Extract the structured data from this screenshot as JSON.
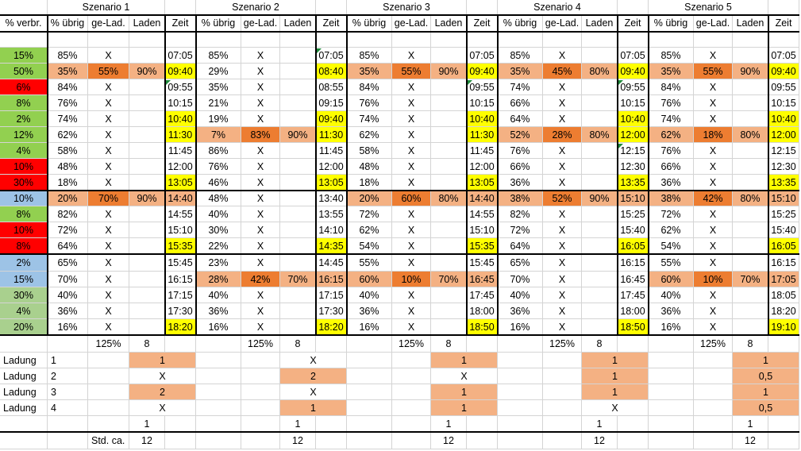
{
  "colors": {
    "light_orange": "#f4b183",
    "dark_orange": "#ed7d31",
    "yellow": "#ffff00",
    "green": "#92d050",
    "red": "#ff0000",
    "blue": "#9dc3e6",
    "light_green": "#a9d08e"
  },
  "scenario_titles": [
    "Szenario 1",
    "Szenario 2",
    "Szenario 3",
    "Szenario 4",
    "Szenario 5"
  ],
  "headers": {
    "verbr": "% verbr.",
    "uebrig": "% übrig",
    "gelad": "ge-Lad.",
    "laden": "Laden",
    "zeit": "Zeit"
  },
  "verbr": [
    "15%",
    "50%",
    "6%",
    "8%",
    "2%",
    "12%",
    "4%",
    "10%",
    "30%",
    "10%",
    "8%",
    "10%",
    "8%",
    "2%",
    "15%",
    "30%",
    "4%",
    "20%"
  ],
  "verbr_colors": [
    "g",
    "g",
    "r",
    "g",
    "g",
    "g",
    "g",
    "r",
    "r",
    "b",
    "g",
    "r",
    "r",
    "b",
    "b",
    "lg",
    "lg",
    "lg"
  ],
  "scenarios": [
    {
      "rows": [
        [
          "85%",
          "X",
          "",
          "07:05"
        ],
        [
          "35%",
          "55%",
          "90%",
          "09:40"
        ],
        [
          "84%",
          "X",
          "",
          "09:55"
        ],
        [
          "76%",
          "X",
          "",
          "10:15"
        ],
        [
          "74%",
          "X",
          "",
          "10:40"
        ],
        [
          "62%",
          "X",
          "",
          "11:30"
        ],
        [
          "58%",
          "X",
          "",
          "11:45"
        ],
        [
          "48%",
          "X",
          "",
          "12:00"
        ],
        [
          "18%",
          "X",
          "",
          "13:05"
        ],
        [
          "20%",
          "70%",
          "90%",
          "14:40"
        ],
        [
          "82%",
          "X",
          "",
          "14:55"
        ],
        [
          "72%",
          "X",
          "",
          "15:10"
        ],
        [
          "64%",
          "X",
          "",
          "15:35"
        ],
        [
          "65%",
          "X",
          "",
          "15:45"
        ],
        [
          "70%",
          "X",
          "",
          "16:15"
        ],
        [
          "40%",
          "X",
          "",
          "17:15"
        ],
        [
          "36%",
          "X",
          "",
          "17:30"
        ],
        [
          "16%",
          "X",
          "",
          "18:20"
        ]
      ],
      "charge_rows": [
        1,
        9
      ],
      "yellow_rows": [
        1,
        4,
        5,
        8,
        12,
        17
      ],
      "tri_rows": [
        2
      ],
      "pct": "125%",
      "count": "8",
      "ladung": [
        "1",
        "X",
        "2",
        "X"
      ],
      "ladung_hl": [
        true,
        false,
        true,
        false
      ],
      "one": "1",
      "std": "12"
    },
    {
      "rows": [
        [
          "85%",
          "X",
          "",
          "07:05"
        ],
        [
          "29%",
          "X",
          "",
          "08:40"
        ],
        [
          "35%",
          "X",
          "",
          "08:55"
        ],
        [
          "21%",
          "X",
          "",
          "09:15"
        ],
        [
          "19%",
          "X",
          "",
          "09:40"
        ],
        [
          "7%",
          "83%",
          "90%",
          "11:30"
        ],
        [
          "86%",
          "X",
          "",
          "11:45"
        ],
        [
          "76%",
          "X",
          "",
          "12:00"
        ],
        [
          "46%",
          "X",
          "",
          "13:05"
        ],
        [
          "48%",
          "X",
          "",
          "13:40"
        ],
        [
          "40%",
          "X",
          "",
          "13:55"
        ],
        [
          "30%",
          "X",
          "",
          "14:10"
        ],
        [
          "22%",
          "X",
          "",
          "14:35"
        ],
        [
          "23%",
          "X",
          "",
          "14:45"
        ],
        [
          "28%",
          "42%",
          "70%",
          "16:15"
        ],
        [
          "40%",
          "X",
          "",
          "17:15"
        ],
        [
          "36%",
          "X",
          "",
          "17:30"
        ],
        [
          "16%",
          "X",
          "",
          "18:20"
        ]
      ],
      "charge_rows": [
        5,
        14
      ],
      "yellow_rows": [
        1,
        4,
        5,
        8,
        12,
        17
      ],
      "tri_rows": [
        0
      ],
      "pct": "125%",
      "count": "8",
      "ladung": [
        "X",
        "2",
        "X",
        "1"
      ],
      "ladung_hl": [
        false,
        true,
        false,
        true
      ],
      "one": "1",
      "std": "12"
    },
    {
      "rows": [
        [
          "85%",
          "X",
          "",
          "07:05"
        ],
        [
          "35%",
          "55%",
          "90%",
          "09:40"
        ],
        [
          "84%",
          "X",
          "",
          "09:55"
        ],
        [
          "76%",
          "X",
          "",
          "10:15"
        ],
        [
          "74%",
          "X",
          "",
          "10:40"
        ],
        [
          "62%",
          "X",
          "",
          "11:30"
        ],
        [
          "58%",
          "X",
          "",
          "11:45"
        ],
        [
          "48%",
          "X",
          "",
          "12:00"
        ],
        [
          "18%",
          "X",
          "",
          "13:05"
        ],
        [
          "20%",
          "60%",
          "80%",
          "14:40"
        ],
        [
          "72%",
          "X",
          "",
          "14:55"
        ],
        [
          "62%",
          "X",
          "",
          "15:10"
        ],
        [
          "54%",
          "X",
          "",
          "15:35"
        ],
        [
          "55%",
          "X",
          "",
          "15:45"
        ],
        [
          "60%",
          "10%",
          "70%",
          "16:45"
        ],
        [
          "40%",
          "X",
          "",
          "17:45"
        ],
        [
          "36%",
          "X",
          "",
          "18:00"
        ],
        [
          "16%",
          "X",
          "",
          "18:50"
        ]
      ],
      "charge_rows": [
        1,
        9,
        14
      ],
      "yellow_rows": [
        1,
        4,
        5,
        8,
        12,
        17
      ],
      "tri_rows": [
        2
      ],
      "pct": "125%",
      "count": "8",
      "ladung": [
        "1",
        "X",
        "1",
        "1"
      ],
      "ladung_hl": [
        true,
        false,
        true,
        true
      ],
      "one": "1",
      "std": "12"
    },
    {
      "rows": [
        [
          "85%",
          "X",
          "",
          "07:05"
        ],
        [
          "35%",
          "45%",
          "80%",
          "09:40"
        ],
        [
          "74%",
          "X",
          "",
          "09:55"
        ],
        [
          "66%",
          "X",
          "",
          "10:15"
        ],
        [
          "64%",
          "X",
          "",
          "10:40"
        ],
        [
          "52%",
          "28%",
          "80%",
          "12:00"
        ],
        [
          "76%",
          "X",
          "",
          "12:15"
        ],
        [
          "66%",
          "X",
          "",
          "12:30"
        ],
        [
          "36%",
          "X",
          "",
          "13:35"
        ],
        [
          "38%",
          "52%",
          "90%",
          "15:10"
        ],
        [
          "82%",
          "X",
          "",
          "15:25"
        ],
        [
          "72%",
          "X",
          "",
          "15:40"
        ],
        [
          "64%",
          "X",
          "",
          "16:05"
        ],
        [
          "65%",
          "X",
          "",
          "16:15"
        ],
        [
          "70%",
          "X",
          "",
          "16:45"
        ],
        [
          "40%",
          "X",
          "",
          "17:45"
        ],
        [
          "36%",
          "X",
          "",
          "18:00"
        ],
        [
          "16%",
          "X",
          "",
          "18:50"
        ]
      ],
      "charge_rows": [
        1,
        5,
        9
      ],
      "yellow_rows": [
        1,
        4,
        5,
        8,
        12,
        17
      ],
      "tri_rows": [
        2,
        6
      ],
      "pct": "125%",
      "count": "8",
      "ladung": [
        "1",
        "1",
        "1",
        "X"
      ],
      "ladung_hl": [
        true,
        true,
        true,
        false
      ],
      "one": "1",
      "std": "12"
    },
    {
      "rows": [
        [
          "85%",
          "X",
          "",
          "07:05"
        ],
        [
          "35%",
          "55%",
          "90%",
          "09:40"
        ],
        [
          "84%",
          "X",
          "",
          "09:55"
        ],
        [
          "76%",
          "X",
          "",
          "10:15"
        ],
        [
          "74%",
          "X",
          "",
          "10:40"
        ],
        [
          "62%",
          "18%",
          "80%",
          "12:00"
        ],
        [
          "76%",
          "X",
          "",
          "12:15"
        ],
        [
          "66%",
          "X",
          "",
          "12:30"
        ],
        [
          "36%",
          "X",
          "",
          "13:35"
        ],
        [
          "38%",
          "42%",
          "80%",
          "15:10"
        ],
        [
          "72%",
          "X",
          "",
          "15:25"
        ],
        [
          "62%",
          "X",
          "",
          "15:40"
        ],
        [
          "54%",
          "X",
          "",
          "16:05"
        ],
        [
          "55%",
          "X",
          "",
          "16:15"
        ],
        [
          "60%",
          "10%",
          "70%",
          "17:05"
        ],
        [
          "40%",
          "X",
          "",
          "18:05"
        ],
        [
          "36%",
          "X",
          "",
          "18:20"
        ],
        [
          "16%",
          "X",
          "",
          "19:10"
        ]
      ],
      "charge_rows": [
        1,
        5,
        9,
        14
      ],
      "yellow_rows": [
        1,
        4,
        5,
        8,
        12,
        17
      ],
      "tri_rows": [],
      "pct": "125%",
      "count": "8",
      "ladung": [
        "1",
        "0,5",
        "1",
        "0,5"
      ],
      "ladung_hl": [
        true,
        true,
        true,
        true
      ],
      "one": "1",
      "std": "12"
    }
  ],
  "ladung_label": "Ladung",
  "ladung_numbers": [
    "1",
    "2",
    "3",
    "4"
  ],
  "std_label": "Std. ca."
}
